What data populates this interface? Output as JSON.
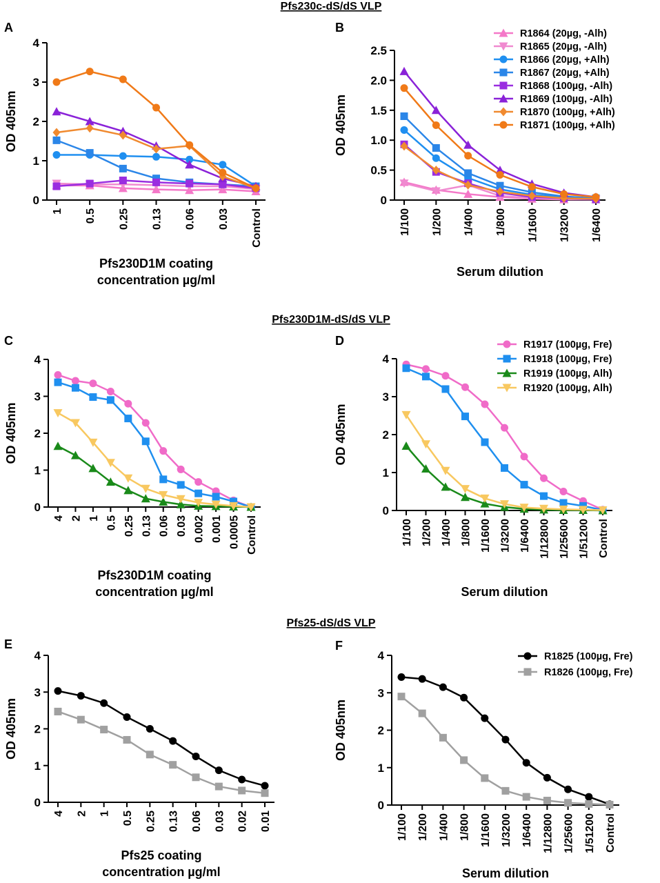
{
  "section_titles": [
    "Pfs230c-dS/dS VLP",
    "Pfs230D1M-dS/dS VLP",
    "Pfs25-dS/dS VLP"
  ],
  "chart_data": [
    {
      "type": "line",
      "panel": "A",
      "ylabel": "OD 405nm",
      "xlabel": [
        "Pfs230D1M coating",
        "concentration µg/ml"
      ],
      "categories": [
        "1",
        "0.5",
        "0.25",
        "0.13",
        "0.06",
        "0.03",
        "Control"
      ],
      "ylim": [
        0,
        4
      ],
      "yticks": [
        0,
        1,
        2,
        3,
        4
      ],
      "series": [
        {
          "color": "#f478c8",
          "marker": "triangle-up",
          "values": [
            0.37,
            0.37,
            0.3,
            0.27,
            0.25,
            0.27,
            0.22
          ]
        },
        {
          "color": "#f08ad0",
          "marker": "triangle-down",
          "values": [
            0.42,
            0.4,
            0.4,
            0.38,
            0.35,
            0.35,
            0.28
          ]
        },
        {
          "color": "#1f8ff0",
          "marker": "circle",
          "values": [
            1.15,
            1.15,
            1.12,
            1.1,
            1.03,
            0.9,
            0.35
          ]
        },
        {
          "color": "#2b86e8",
          "marker": "square",
          "values": [
            1.52,
            1.2,
            0.8,
            0.55,
            0.45,
            0.4,
            0.35
          ]
        },
        {
          "color": "#9a2de0",
          "marker": "square",
          "values": [
            0.35,
            0.42,
            0.5,
            0.45,
            0.42,
            0.4,
            0.3
          ]
        },
        {
          "color": "#8a22d8",
          "marker": "triangle-up",
          "values": [
            2.25,
            2.0,
            1.75,
            1.38,
            0.9,
            0.55,
            0.35
          ]
        },
        {
          "color": "#f08a30",
          "marker": "diamond",
          "values": [
            1.72,
            1.83,
            1.65,
            1.3,
            1.38,
            0.6,
            0.3
          ]
        },
        {
          "color": "#f07a18",
          "marker": "circle",
          "values": [
            3.0,
            3.27,
            3.07,
            2.35,
            1.4,
            0.7,
            0.3
          ]
        }
      ]
    },
    {
      "type": "line",
      "panel": "B",
      "ylabel": "OD 405nm",
      "xlabel": [
        "Serum dilution"
      ],
      "legend": "upper right",
      "categories": [
        "1/100",
        "1/200",
        "1/400",
        "1/800",
        "1/1600",
        "1/3200",
        "1/6400"
      ],
      "ylim": [
        0,
        2.5
      ],
      "yticks": [
        0,
        0.5,
        {
          "value": 1,
          "label": "1.0"
        },
        1.5,
        {
          "value": 2,
          "label": "2.0"
        },
        2.5
      ],
      "series": [
        {
          "name": "R1864 (20µg, -Alh)",
          "color": "#f478c8",
          "marker": "triangle-up",
          "values": [
            0.3,
            0.17,
            0.1,
            0.05,
            0.02,
            0.01,
            0.01
          ]
        },
        {
          "name": "R1865 (20µg, -Alh)",
          "color": "#f08ad0",
          "marker": "triangle-down",
          "values": [
            0.28,
            0.15,
            0.25,
            0.07,
            0.03,
            0.02,
            0.01
          ]
        },
        {
          "name": "R1866 (20µg, +Alh)",
          "color": "#1f8ff0",
          "marker": "circle",
          "values": [
            1.17,
            0.7,
            0.37,
            0.18,
            0.09,
            0.05,
            0.02
          ]
        },
        {
          "name": "R1867 (20µg, +Alh)",
          "color": "#2b86e8",
          "marker": "square",
          "values": [
            1.4,
            0.87,
            0.45,
            0.24,
            0.13,
            0.06,
            0.03
          ]
        },
        {
          "name": "R1868 (100µg, -Alh)",
          "color": "#9a2de0",
          "marker": "square",
          "values": [
            0.93,
            0.47,
            0.28,
            0.12,
            0.05,
            0.03,
            0.01
          ]
        },
        {
          "name": "R1869 (100µg, -Alh)",
          "color": "#8a22d8",
          "marker": "triangle-up",
          "values": [
            2.15,
            1.5,
            0.92,
            0.5,
            0.27,
            0.12,
            0.05
          ]
        },
        {
          "name": "R1870 (100µg, +Alh)",
          "color": "#f08a30",
          "marker": "diamond",
          "values": [
            0.9,
            0.5,
            0.25,
            0.14,
            0.07,
            0.03,
            0.02
          ]
        },
        {
          "name": "R1871 (100µg, +Alh)",
          "color": "#f07a18",
          "marker": "circle",
          "values": [
            1.87,
            1.25,
            0.74,
            0.42,
            0.22,
            0.1,
            0.05
          ]
        }
      ]
    },
    {
      "type": "line",
      "panel": "C",
      "ylabel": "OD 405nm",
      "xlabel": [
        "Pfs230D1M coating",
        "concentration µg/ml"
      ],
      "categories": [
        "4",
        "2",
        "1",
        "0.5",
        "0.25",
        "0.13",
        "0.06",
        "0.03",
        "0.002",
        "0.001",
        "0.0005",
        "Control"
      ],
      "ylim": [
        0,
        4
      ],
      "yticks": [
        0,
        1,
        2,
        3,
        4
      ],
      "series": [
        {
          "color": "#f06bc8",
          "marker": "circle",
          "values": [
            3.58,
            3.42,
            3.35,
            3.13,
            2.8,
            2.28,
            1.52,
            1.02,
            0.68,
            0.43,
            0.18,
            0
          ]
        },
        {
          "color": "#1f8fef",
          "marker": "square",
          "values": [
            3.38,
            3.23,
            2.98,
            2.9,
            2.4,
            1.78,
            0.75,
            0.6,
            0.37,
            0.28,
            0.15,
            0
          ]
        },
        {
          "color": "#1a8a1a",
          "marker": "triangle-up",
          "values": [
            1.65,
            1.4,
            1.05,
            0.68,
            0.45,
            0.23,
            0.14,
            0.07,
            0.03,
            0.02,
            0.01,
            0
          ]
        },
        {
          "color": "#f8c860",
          "marker": "triangle-down",
          "values": [
            2.55,
            2.28,
            1.75,
            1.2,
            0.78,
            0.5,
            0.33,
            0.22,
            0.12,
            0.07,
            0.03,
            0
          ]
        }
      ]
    },
    {
      "type": "line",
      "panel": "D",
      "ylabel": "OD 405nm",
      "xlabel": [
        "Serum dilution"
      ],
      "legend": "upper right",
      "categories": [
        "1/100",
        "1/200",
        "1/400",
        "1/800",
        "1/1600",
        "1/3200",
        "1/6400",
        "1/12800",
        "1/25600",
        "1/51200",
        "Control"
      ],
      "ylim": [
        0,
        4
      ],
      "yticks": [
        0,
        1,
        2,
        3,
        4
      ],
      "series": [
        {
          "name": "R1917 (100µg, Fre)",
          "color": "#f06bc8",
          "marker": "circle",
          "values": [
            3.85,
            3.73,
            3.55,
            3.25,
            2.8,
            2.18,
            1.42,
            0.85,
            0.5,
            0.25,
            0.02
          ]
        },
        {
          "name": "R1918 (100µg, Fre)",
          "color": "#1f8fef",
          "marker": "square",
          "values": [
            3.75,
            3.53,
            3.2,
            2.48,
            1.8,
            1.12,
            0.68,
            0.38,
            0.2,
            0.12,
            0.01
          ]
        },
        {
          "name": "R1919 (100µg, Alh)",
          "color": "#1a8a1a",
          "marker": "triangle-up",
          "values": [
            1.7,
            1.1,
            0.62,
            0.35,
            0.18,
            0.09,
            0.04,
            0.02,
            0.01,
            0.01,
            0
          ]
        },
        {
          "name": "R1920 (100µg, Alh)",
          "color": "#f8c860",
          "marker": "triangle-down",
          "values": [
            2.52,
            1.75,
            1.05,
            0.57,
            0.32,
            0.17,
            0.08,
            0.05,
            0.03,
            0.02,
            0.01
          ]
        }
      ]
    },
    {
      "type": "line",
      "panel": "E",
      "ylabel": "OD 405nm",
      "xlabel": [
        "Pfs25 coating",
        "concentration µg/ml"
      ],
      "categories": [
        "4",
        "2",
        "1",
        "0.5",
        "0.25",
        "0.13",
        "0.06",
        "0.03",
        "0.02",
        "0.01"
      ],
      "ylim": [
        0,
        4
      ],
      "yticks": [
        0,
        1,
        2,
        3,
        4
      ],
      "series": [
        {
          "color": "#000000",
          "marker": "circle",
          "values": [
            3.03,
            2.9,
            2.7,
            2.32,
            2.0,
            1.67,
            1.25,
            0.87,
            0.62,
            0.45
          ]
        },
        {
          "color": "#a0a0a0",
          "marker": "square",
          "values": [
            2.47,
            2.25,
            1.98,
            1.7,
            1.3,
            1.02,
            0.68,
            0.43,
            0.32,
            0.25
          ]
        }
      ]
    },
    {
      "type": "line",
      "panel": "F",
      "ylabel": "OD 405nm",
      "xlabel": [
        "Serum dilution"
      ],
      "legend": "upper right",
      "categories": [
        "1/100",
        "1/200",
        "1/400",
        "1/800",
        "1/1600",
        "1/3200",
        "1/6400",
        "1/12800",
        "1/25600",
        "1/51200",
        "Control"
      ],
      "ylim": [
        0,
        4
      ],
      "yticks": [
        0,
        1,
        2,
        3,
        4
      ],
      "series": [
        {
          "name": "R1825 (100µg, Fre)",
          "color": "#000000",
          "marker": "circle",
          "values": [
            3.42,
            3.37,
            3.15,
            2.87,
            2.32,
            1.75,
            1.13,
            0.73,
            0.42,
            0.22,
            0.02
          ]
        },
        {
          "name": "R1826 (100µg, Fre)",
          "color": "#a0a0a0",
          "marker": "square",
          "values": [
            2.9,
            2.45,
            1.8,
            1.2,
            0.72,
            0.38,
            0.22,
            0.12,
            0.06,
            0.03,
            0.01
          ]
        }
      ]
    }
  ]
}
